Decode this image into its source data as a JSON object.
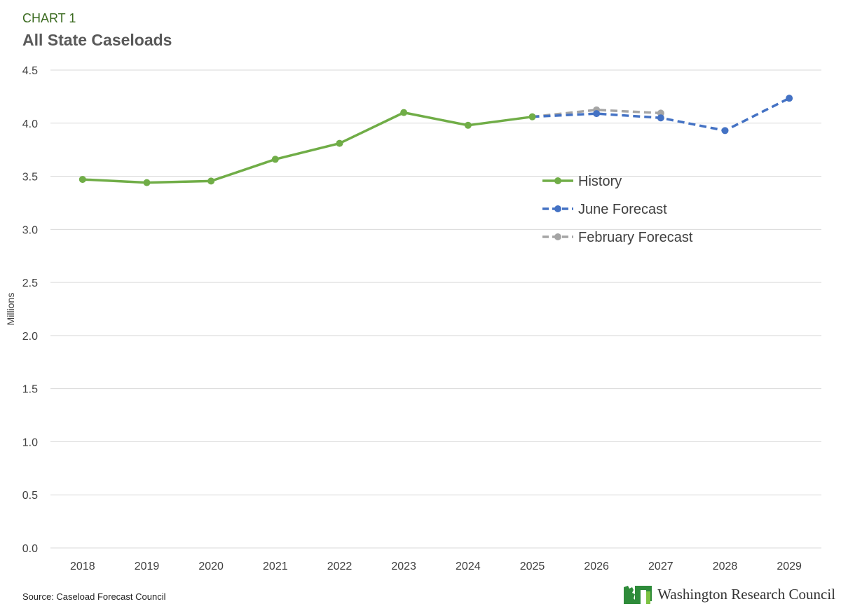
{
  "header": {
    "kicker": "CHART 1",
    "title": "All State Caseloads"
  },
  "footer": {
    "source": "Source: Caseload Forecast Council",
    "logo_text": "Washington Research Council",
    "logo_icon": "washington-state-map-icon"
  },
  "colors": {
    "history": "#70ad47",
    "june": "#4472c4",
    "february": "#a5a5a5",
    "grid": "#d9d9d9",
    "logo_green": "#2e8b3a"
  },
  "chart_data": {
    "type": "line",
    "title": "All State Caseloads",
    "ylabel": "Millions",
    "xlabel": "",
    "ylim": [
      0,
      4.5
    ],
    "yticks": [
      0.0,
      0.5,
      1.0,
      1.5,
      2.0,
      2.5,
      3.0,
      3.5,
      4.0,
      4.5
    ],
    "ytick_labels": [
      "0.0",
      "0.5",
      "1.0",
      "1.5",
      "2.0",
      "2.5",
      "3.0",
      "3.5",
      "4.0",
      "4.5"
    ],
    "categories": [
      "2018",
      "2019",
      "2020",
      "2021",
      "2022",
      "2023",
      "2024",
      "2025",
      "2026",
      "2027",
      "2028",
      "2029"
    ],
    "grid": true,
    "legend_position": "center-right",
    "series": [
      {
        "name": "History",
        "style": "solid",
        "x": [
          "2018",
          "2019",
          "2020",
          "2021",
          "2022",
          "2023",
          "2024",
          "2025"
        ],
        "values": [
          3.47,
          3.44,
          3.455,
          3.66,
          3.81,
          4.1,
          3.98,
          4.06
        ]
      },
      {
        "name": "June Forecast",
        "style": "dashed",
        "x": [
          "2025",
          "2026",
          "2027",
          "2028",
          "2029"
        ],
        "values": [
          4.06,
          4.09,
          4.05,
          3.93,
          4.235
        ]
      },
      {
        "name": "February Forecast",
        "style": "dashed",
        "x": [
          "2025",
          "2026",
          "2027"
        ],
        "values": [
          4.06,
          4.125,
          4.095
        ]
      }
    ]
  }
}
